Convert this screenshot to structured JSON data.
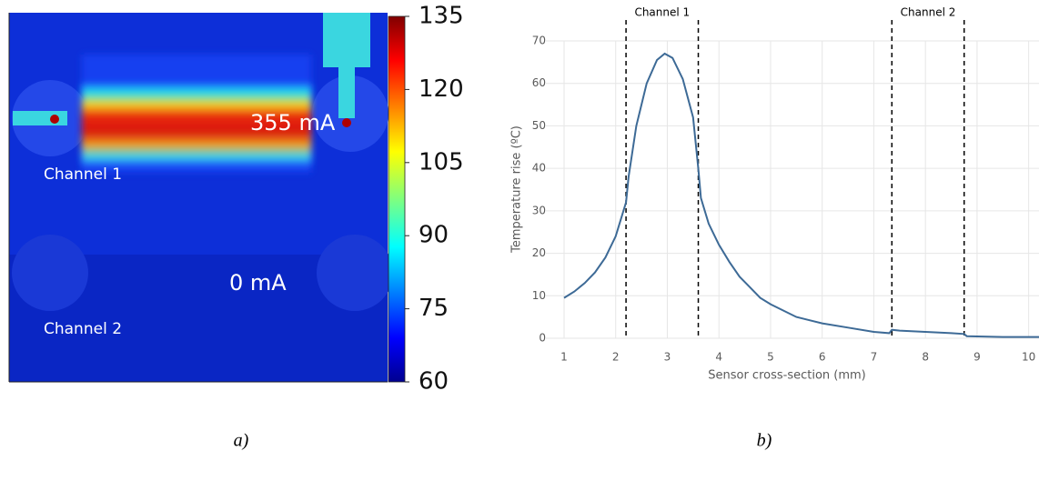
{
  "chart_data": [
    {
      "type": "thermal-image",
      "annotations": [
        "355 mA",
        "Channel 1",
        "0 mA",
        "Channel 2"
      ],
      "clim": [
        60,
        135
      ],
      "cticks": [
        60,
        75,
        90,
        105,
        120,
        135
      ],
      "caption": "a)"
    },
    {
      "type": "line",
      "xlabel": "Sensor cross-section (mm)",
      "ylabel": "Temperature rise (ºC)",
      "xlim": [
        1,
        10.2
      ],
      "ylim": [
        0,
        70
      ],
      "xticks": [
        1,
        2,
        3,
        4,
        5,
        6,
        7,
        8,
        9,
        10
      ],
      "yticks": [
        0,
        10,
        20,
        30,
        40,
        50,
        60,
        70
      ],
      "grid": true,
      "vlines": [
        2.2,
        3.6,
        7.35,
        8.75
      ],
      "vline_labels": [
        "Channel 1",
        "Channel 2"
      ],
      "series": [
        {
          "color": "#3d6a96",
          "x": [
            1,
            1.2,
            1.4,
            1.6,
            1.8,
            2.0,
            2.2,
            2.25,
            2.4,
            2.6,
            2.8,
            2.95,
            3.1,
            3.3,
            3.5,
            3.6,
            3.65,
            3.8,
            4.0,
            4.2,
            4.4,
            4.6,
            4.8,
            5.0,
            5.5,
            6.0,
            6.5,
            7.0,
            7.3,
            7.35,
            7.5,
            8.0,
            8.5,
            8.75,
            8.8,
            9.5,
            10.2
          ],
          "values": [
            9.5,
            11,
            13,
            15.5,
            19,
            24,
            32,
            38,
            50,
            60,
            65.5,
            67,
            66,
            61,
            52,
            40,
            33,
            27,
            22,
            18,
            14.5,
            12,
            9.5,
            8,
            5,
            3.5,
            2.5,
            1.5,
            1.2,
            2,
            1.8,
            1.5,
            1.2,
            1,
            0.5,
            0.3,
            0.3
          ]
        }
      ],
      "caption": "b)"
    }
  ]
}
